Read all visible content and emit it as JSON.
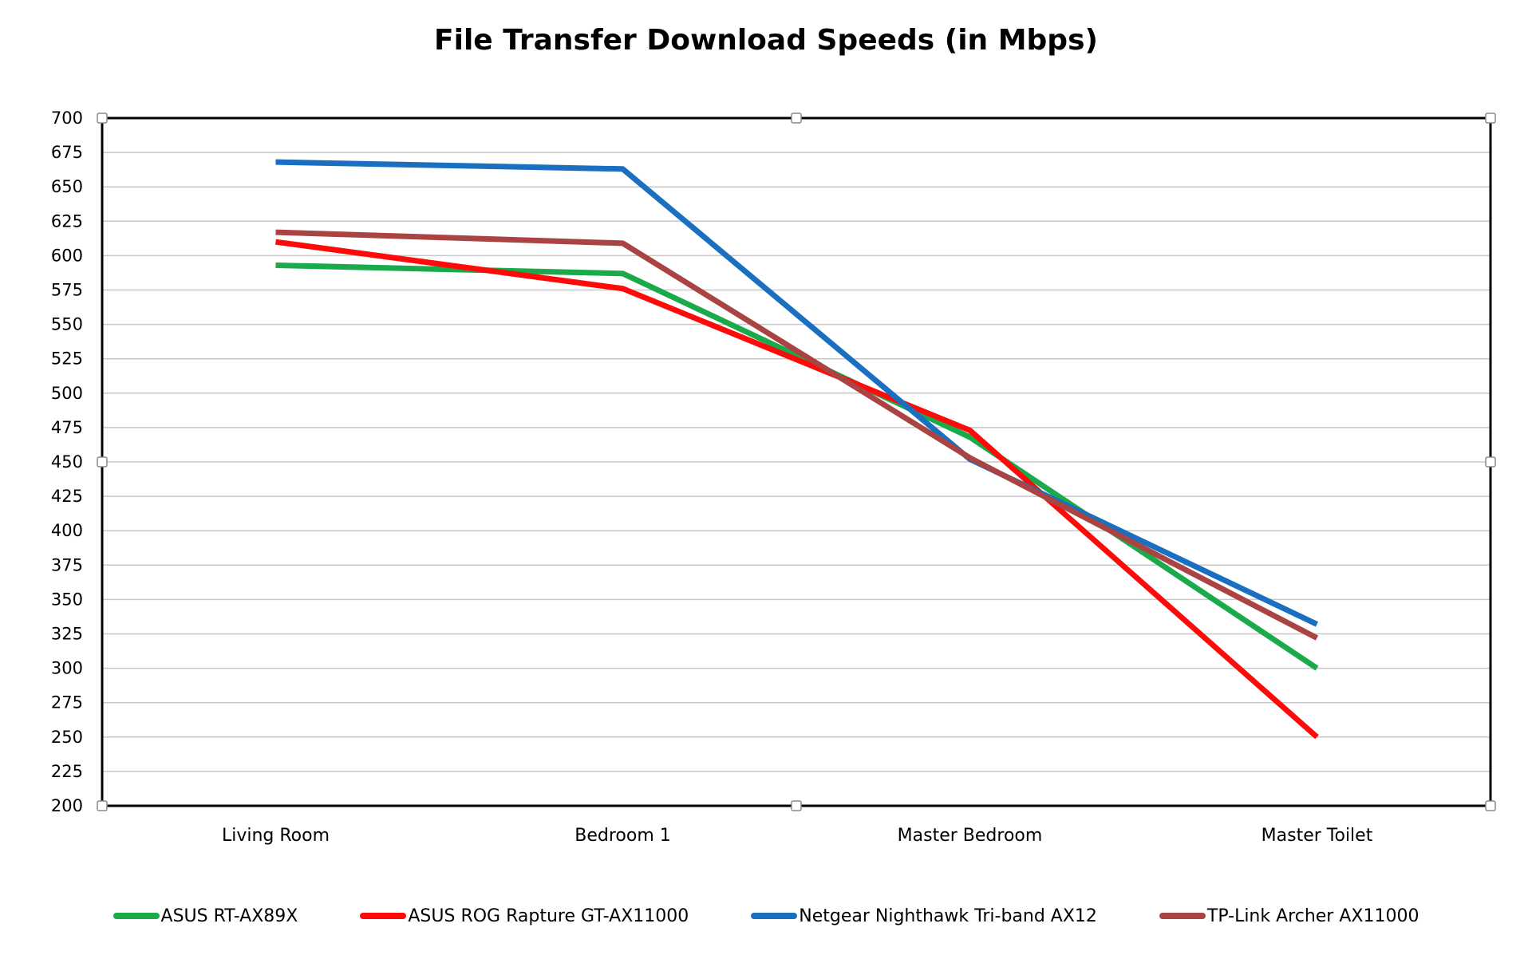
{
  "chart_data": {
    "type": "line",
    "title": "File Transfer Download Speeds (in Mbps)",
    "xlabel": "",
    "ylabel": "",
    "ylim": [
      200,
      700
    ],
    "ytick_step": 25,
    "yticks": [
      "200",
      "225",
      "250",
      "275",
      "300",
      "325",
      "350",
      "375",
      "400",
      "425",
      "450",
      "475",
      "500",
      "525",
      "550",
      "575",
      "600",
      "625",
      "650",
      "675",
      "700"
    ],
    "categories": [
      "Living Room",
      "Bedroom 1",
      "Master Bedroom",
      "Master Toilet"
    ],
    "grid": true,
    "legend_position": "bottom",
    "series": [
      {
        "name": "ASUS RT-AX89X",
        "color": "#1aaa4a",
        "values": [
          593,
          587,
          468,
          300
        ]
      },
      {
        "name": "ASUS ROG Rapture GT-AX11000",
        "color": "#ff0a0a",
        "values": [
          610,
          576,
          473,
          250
        ]
      },
      {
        "name": "Netgear Nighthawk Tri-band AX12",
        "color": "#1a6fc0",
        "values": [
          668,
          663,
          452,
          332
        ]
      },
      {
        "name": "TP-Link Archer AX11000",
        "color": "#a94442",
        "values": [
          617,
          609,
          453,
          322
        ]
      }
    ]
  }
}
